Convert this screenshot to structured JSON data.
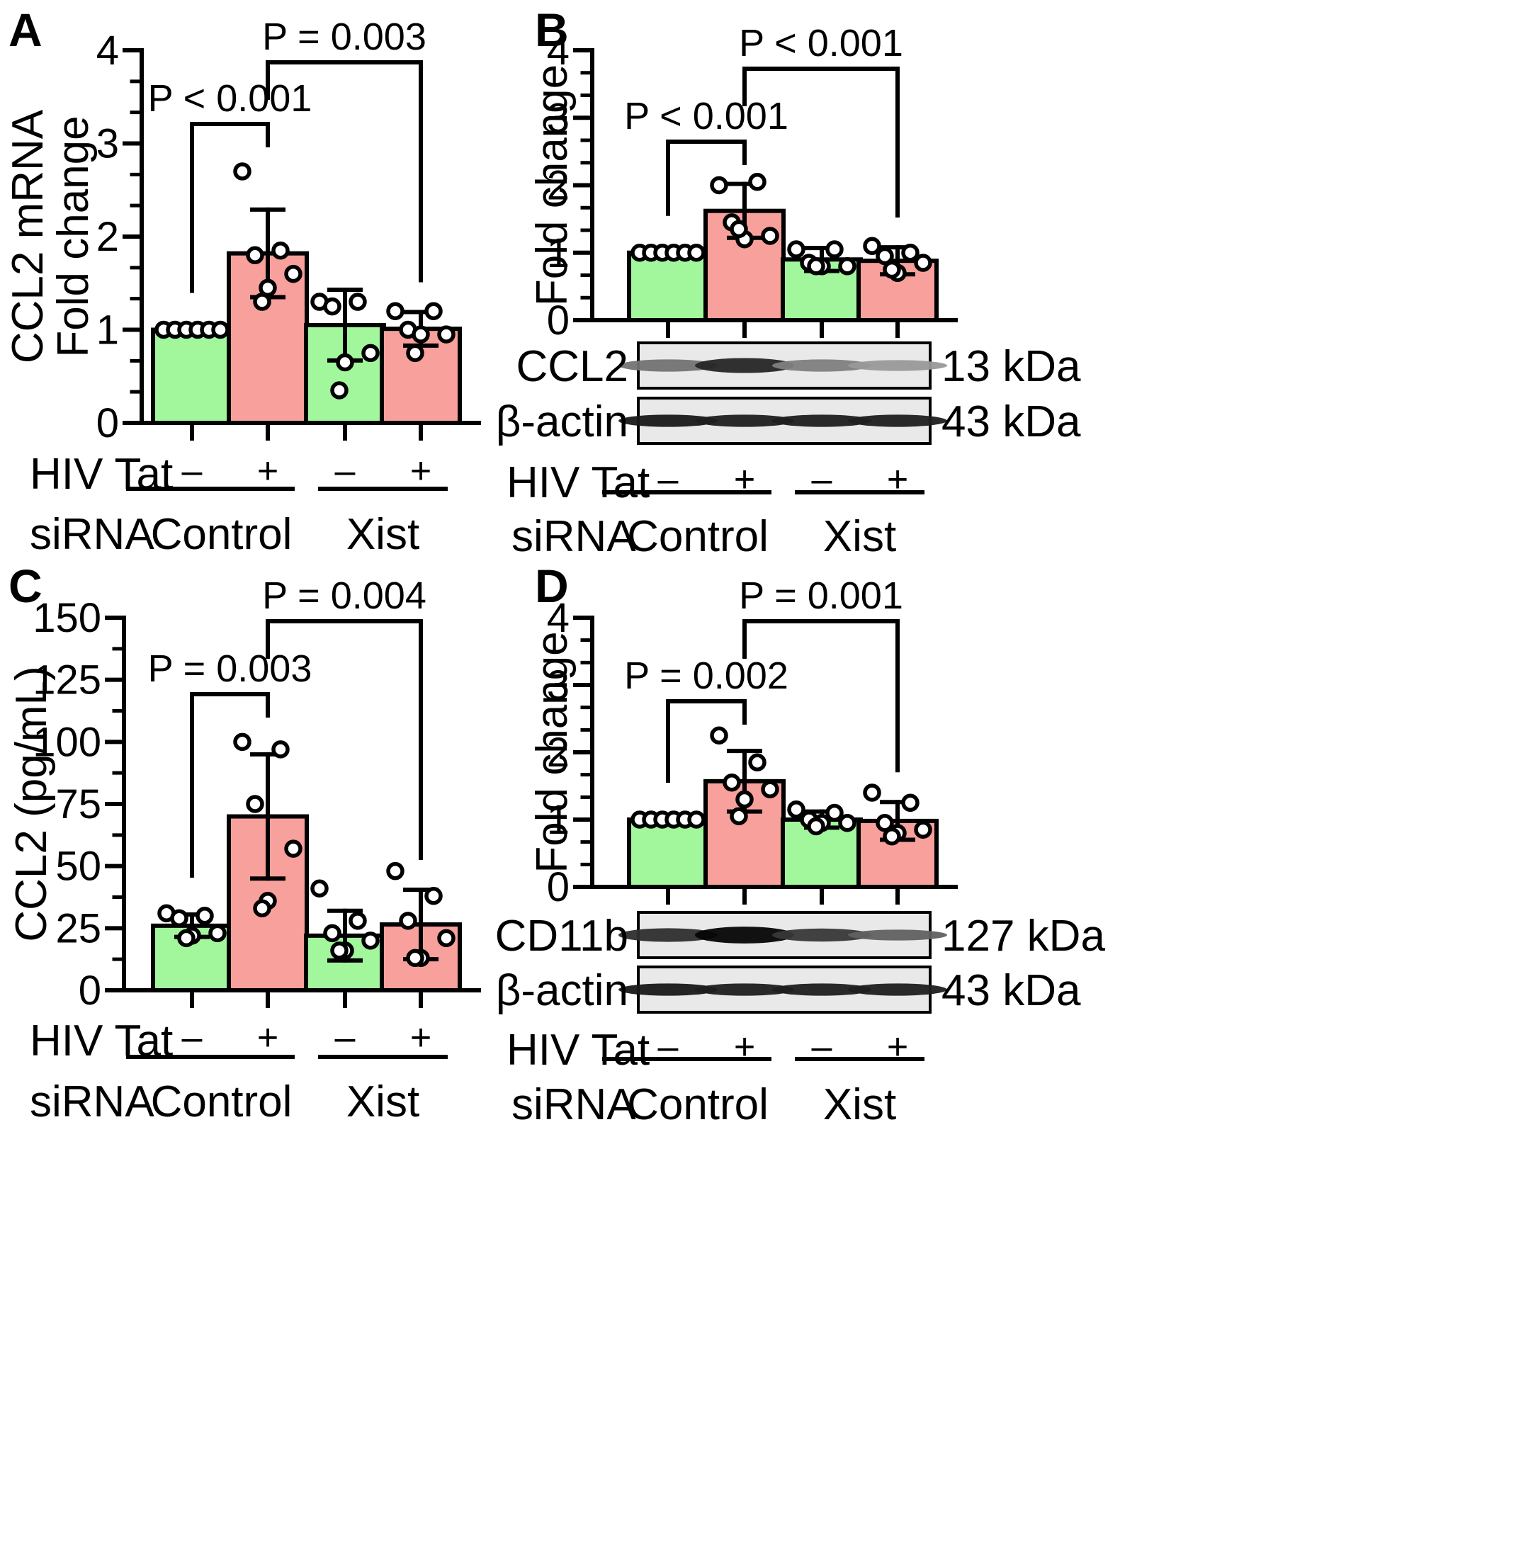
{
  "colors": {
    "control": "#a2f79c",
    "tat": "#f8a09c",
    "axis": "#000000",
    "blot_bg": "#e9e9e9",
    "band": "#111111"
  },
  "chart_data": [
    {
      "panel": "A",
      "type": "bar",
      "ylabel": "CCL2 mRNA",
      "ylabel2": "Fold change",
      "ylim": [
        0,
        4
      ],
      "yticks": [
        "0",
        "1",
        "2",
        "3",
        "4"
      ],
      "categories": [
        "Control -",
        "Control +",
        "Xist -",
        "Xist +"
      ],
      "values": [
        1.0,
        1.82,
        1.05,
        1.01
      ],
      "sd": [
        0,
        0.47,
        0.38,
        0.18
      ],
      "points": [
        [
          1,
          1,
          1,
          1,
          1,
          1
        ],
        [
          2.7,
          1.85,
          1.8,
          1.6,
          1.45,
          1.3
        ],
        [
          1.3,
          1.3,
          1.25,
          0.75,
          0.65,
          0.35
        ],
        [
          1.2,
          1.2,
          1.0,
          0.95,
          0.95,
          0.75
        ]
      ],
      "comparisons": [
        {
          "label": "P < 0.001",
          "from": 0,
          "to": 1
        },
        {
          "label": "P = 0.003",
          "from": 1,
          "to": 3
        }
      ],
      "hiv_tat_label": "HIV Tat",
      "tat_marks": [
        "–",
        "+",
        "–",
        "+"
      ],
      "sirna_label": "siRNA",
      "groups": [
        "Control",
        "Xist"
      ]
    },
    {
      "panel": "B",
      "type": "bar",
      "ylabel": "Fold change",
      "ylim": [
        0,
        4
      ],
      "yticks": [
        "0",
        "1",
        "2",
        "3",
        "4"
      ],
      "categories": [
        "Control -",
        "Control +",
        "Xist -",
        "Xist +"
      ],
      "values": [
        1.0,
        1.62,
        0.9,
        0.88
      ],
      "sd": [
        0,
        0.4,
        0.17,
        0.2
      ],
      "points": [
        [
          1,
          1,
          1,
          1,
          1,
          1
        ],
        [
          2.0,
          2.05,
          1.45,
          1.25,
          1.2,
          1.35
        ],
        [
          1.05,
          1.05,
          0.85,
          0.8,
          0.8,
          0.8
        ],
        [
          1.1,
          1.0,
          0.95,
          0.85,
          0.7,
          0.75
        ]
      ],
      "comparisons": [
        {
          "label": "P < 0.001",
          "from": 0,
          "to": 1
        },
        {
          "label": "P < 0.001",
          "from": 1,
          "to": 3
        }
      ],
      "blots": [
        {
          "protein": "CCL2",
          "size": "13 kDa",
          "intensity": [
            0.55,
            0.85,
            0.5,
            0.4
          ],
          "thickness": [
            0.45,
            0.55,
            0.45,
            0.4
          ]
        },
        {
          "protein": "β-actin",
          "size": "43 kDa",
          "intensity": [
            0.9,
            0.88,
            0.88,
            0.88
          ],
          "thickness": [
            0.45,
            0.45,
            0.45,
            0.45
          ]
        }
      ],
      "hiv_tat_label": "HIV Tat",
      "tat_marks": [
        "–",
        "+",
        "–",
        "+"
      ],
      "sirna_label": "siRNA",
      "groups": [
        "Control",
        "Xist"
      ]
    },
    {
      "panel": "C",
      "type": "bar",
      "ylabel": "CCL2 (pg/mL)",
      "ylim": [
        0,
        150
      ],
      "yticks": [
        "0",
        "25",
        "50",
        "75",
        "100",
        "125",
        "150"
      ],
      "categories": [
        "Control -",
        "Control +",
        "Xist -",
        "Xist +"
      ],
      "values": [
        26,
        70,
        22,
        26.5
      ],
      "sd": [
        4.5,
        25,
        10,
        14
      ],
      "points": [
        [
          31,
          30,
          29,
          23,
          22,
          21
        ],
        [
          100,
          97,
          75,
          57,
          36,
          33
        ],
        [
          41,
          28,
          23,
          20,
          16,
          16
        ],
        [
          48,
          38,
          28,
          21,
          13,
          13
        ]
      ],
      "comparisons": [
        {
          "label": "P = 0.003",
          "from": 0,
          "to": 1
        },
        {
          "label": "P = 0.004",
          "from": 1,
          "to": 3
        }
      ],
      "hiv_tat_label": "HIV Tat",
      "tat_marks": [
        "–",
        "+",
        "–",
        "+"
      ],
      "sirna_label": "siRNA",
      "groups": [
        "Control",
        "Xist"
      ]
    },
    {
      "panel": "D",
      "type": "bar",
      "ylabel": "Fold change",
      "ylim": [
        0,
        4
      ],
      "yticks": [
        "0",
        "1",
        "2",
        "3",
        "4"
      ],
      "categories": [
        "Control -",
        "Control +",
        "Xist -",
        "Xist +"
      ],
      "values": [
        1.0,
        1.57,
        1.0,
        0.98
      ],
      "sd": [
        0,
        0.45,
        0.12,
        0.28
      ],
      "points": [
        [
          1,
          1,
          1,
          1,
          1,
          1
        ],
        [
          2.25,
          1.85,
          1.55,
          1.45,
          1.3,
          1.05
        ],
        [
          1.15,
          1.1,
          1.0,
          0.95,
          0.95,
          0.9
        ],
        [
          1.4,
          1.25,
          0.95,
          0.85,
          0.8,
          0.75
        ]
      ],
      "comparisons": [
        {
          "label": "P = 0.002",
          "from": 0,
          "to": 1
        },
        {
          "label": "P = 0.001",
          "from": 1,
          "to": 3
        }
      ],
      "blots": [
        {
          "protein": "CD11b",
          "size": "127 kDa",
          "intensity": [
            0.82,
            0.98,
            0.78,
            0.62
          ],
          "thickness": [
            0.5,
            0.62,
            0.48,
            0.4
          ]
        },
        {
          "protein": "β-actin",
          "size": "43 kDa",
          "intensity": [
            0.9,
            0.88,
            0.88,
            0.88
          ],
          "thickness": [
            0.45,
            0.45,
            0.45,
            0.45
          ]
        }
      ],
      "hiv_tat_label": "HIV Tat",
      "tat_marks": [
        "–",
        "+",
        "–",
        "+"
      ],
      "sirna_label": "siRNA",
      "groups": [
        "Control",
        "Xist"
      ]
    }
  ]
}
